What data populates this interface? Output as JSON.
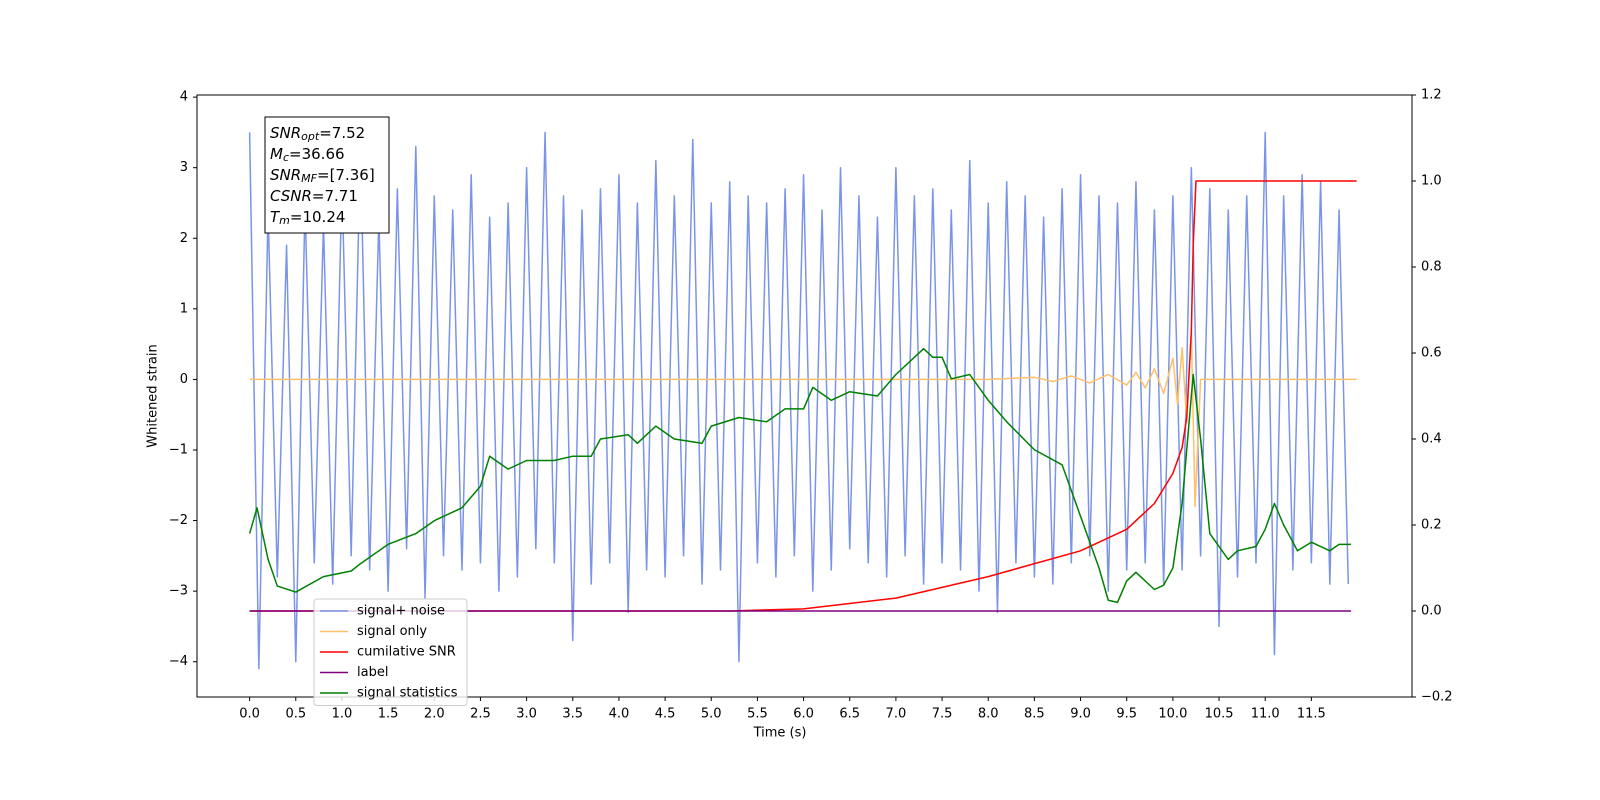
{
  "chart_data": {
    "type": "line",
    "xlabel": "Time (s)",
    "ylabel": "Whitened strain",
    "xlim": [
      -0.57,
      12.59
    ],
    "ylim": [
      -4.5,
      4.03
    ],
    "y2lim": [
      -0.2,
      1.2
    ],
    "grid": false,
    "legend": "lower left",
    "xticks": [
      {
        "value": 0,
        "label": "0.0"
      },
      0.5,
      {
        "value": 1,
        "label": "1.0"
      },
      1.5,
      {
        "value": 2,
        "label": "2.0"
      },
      2.5,
      {
        "value": 3,
        "label": "3.0"
      },
      3.5,
      {
        "value": 4,
        "label": "4.0"
      },
      4.5,
      {
        "value": 5,
        "label": "5.0"
      },
      5.5,
      {
        "value": 6,
        "label": "6.0"
      },
      6.5,
      {
        "value": 7,
        "label": "7.0"
      },
      7.5,
      {
        "value": 8,
        "label": "8.0"
      },
      8.5,
      {
        "value": 9,
        "label": "9.0"
      },
      9.5,
      {
        "value": 10,
        "label": "10.0"
      },
      10.5,
      {
        "value": 11,
        "label": "11.0"
      },
      11.5
    ],
    "yticks": [
      {
        "value": -4,
        "label": "−4"
      },
      {
        "value": -3,
        "label": "−3"
      },
      {
        "value": -2,
        "label": "−2"
      },
      {
        "value": -1,
        "label": "−1"
      },
      0,
      1,
      2,
      3,
      4
    ],
    "y2ticks": [
      {
        "value": -0.2,
        "label": "−0.2"
      },
      {
        "value": 0,
        "label": "0.0"
      },
      0.2,
      0.4,
      0.6,
      0.8,
      {
        "value": 1,
        "label": "1.0"
      },
      1.2
    ],
    "annotation": [
      {
        "var": "SNR",
        "sub": "opt",
        "text": "=7.52"
      },
      {
        "var": "M",
        "sub": "c",
        "text": "=36.66"
      },
      {
        "var": "SNR",
        "sub": "MF",
        "text": "=[7.36]"
      },
      {
        "var": "CSNR",
        "sub": null,
        "text": "=7.71"
      },
      {
        "var": "T",
        "sub": "m",
        "text": "=10.24"
      }
    ],
    "series": [
      {
        "name": "signal+ noise",
        "color": "#7b95e6",
        "axis": "y",
        "x": [
          0.0,
          0.1,
          0.2,
          0.3,
          0.4,
          0.5,
          0.6,
          0.7,
          0.8,
          0.9,
          1.0,
          1.1,
          1.2,
          1.3,
          1.4,
          1.5,
          1.6,
          1.7,
          1.8,
          1.9,
          2.0,
          2.1,
          2.2,
          2.3,
          2.4,
          2.5,
          2.6,
          2.7,
          2.8,
          2.9,
          3.0,
          3.1,
          3.2,
          3.3,
          3.4,
          3.5,
          3.6,
          3.7,
          3.8,
          3.9,
          4.0,
          4.1,
          4.2,
          4.3,
          4.4,
          4.5,
          4.6,
          4.7,
          4.8,
          4.9,
          5.0,
          5.1,
          5.2,
          5.3,
          5.4,
          5.5,
          5.6,
          5.7,
          5.8,
          5.9,
          6.0,
          6.1,
          6.2,
          6.3,
          6.4,
          6.5,
          6.6,
          6.7,
          6.8,
          6.9,
          7.0,
          7.1,
          7.2,
          7.3,
          7.4,
          7.5,
          7.6,
          7.7,
          7.8,
          7.9,
          8.0,
          8.1,
          8.2,
          8.3,
          8.4,
          8.5,
          8.6,
          8.7,
          8.8,
          8.9,
          9.0,
          9.1,
          9.2,
          9.3,
          9.4,
          9.5,
          9.6,
          9.7,
          9.8,
          9.9,
          10.0,
          10.1,
          10.2,
          10.3,
          10.4,
          10.5,
          10.6,
          10.7,
          10.8,
          10.9,
          11.0,
          11.1,
          11.2,
          11.3,
          11.4,
          11.5,
          11.6,
          11.7,
          11.8,
          11.9
        ],
        "values": [
          3.5,
          -4.1,
          2.4,
          -2.8,
          1.9,
          -4.0,
          2.5,
          -2.6,
          2.2,
          -2.9,
          2.8,
          -2.5,
          3.3,
          -2.7,
          2.3,
          -3.0,
          2.7,
          -2.4,
          3.3,
          -3.1,
          2.6,
          -2.5,
          2.4,
          -2.7,
          2.9,
          -2.6,
          2.3,
          -3.0,
          2.5,
          -2.8,
          3.0,
          -2.4,
          3.5,
          -2.6,
          2.6,
          -3.7,
          2.4,
          -2.9,
          2.7,
          -2.6,
          2.9,
          -3.3,
          2.5,
          -2.7,
          3.1,
          -2.8,
          2.6,
          -2.5,
          3.4,
          -2.9,
          2.5,
          -2.7,
          2.8,
          -4.0,
          2.6,
          -2.6,
          2.5,
          -2.8,
          2.7,
          -2.5,
          2.9,
          -3.0,
          2.4,
          -2.7,
          3.0,
          -2.4,
          2.6,
          -2.6,
          2.3,
          -2.8,
          3.0,
          -2.5,
          2.6,
          -2.9,
          2.7,
          -2.6,
          2.4,
          -2.7,
          3.1,
          -3.0,
          2.5,
          -3.3,
          2.8,
          -2.6,
          2.6,
          -2.8,
          2.3,
          -2.9,
          2.7,
          -2.6,
          2.9,
          -2.5,
          2.6,
          -3.0,
          2.5,
          -2.7,
          2.8,
          -2.6,
          2.4,
          -2.9,
          2.6,
          -2.7,
          3.0,
          -2.5,
          2.7,
          -3.5,
          2.4,
          -2.8,
          2.6,
          -2.6,
          3.5,
          -3.9,
          2.6,
          -2.7,
          2.9,
          -2.6,
          2.8,
          -2.9,
          2.4,
          -2.9
        ]
      },
      {
        "name": "signal only",
        "color": "#ffc06a",
        "axis": "y",
        "x": [
          0,
          8.0,
          8.5,
          8.7,
          8.9,
          9.1,
          9.3,
          9.5,
          9.6,
          9.7,
          9.8,
          9.9,
          10.0,
          10.05,
          10.1,
          10.15,
          10.2,
          10.24,
          10.3,
          11.99
        ],
        "values": [
          0,
          0,
          0.03,
          -0.03,
          0.05,
          -0.05,
          0.07,
          -0.08,
          0.1,
          -0.12,
          0.15,
          -0.2,
          0.3,
          -0.35,
          0.45,
          -0.6,
          0.7,
          -1.8,
          0,
          0
        ]
      },
      {
        "name": "cumilative SNR",
        "color": "#ff0000",
        "axis": "y2",
        "x": [
          0,
          5.2,
          6.0,
          7.0,
          8.0,
          9.0,
          9.5,
          9.8,
          10.0,
          10.1,
          10.15,
          10.2,
          10.22,
          10.25,
          11.99
        ],
        "values": [
          0,
          0,
          0.005,
          0.03,
          0.08,
          0.14,
          0.19,
          0.25,
          0.32,
          0.38,
          0.45,
          0.65,
          0.85,
          1.0,
          1.0
        ]
      },
      {
        "name": "label",
        "color": "#800080",
        "axis": "y2",
        "x": [
          0,
          11.93
        ],
        "values": [
          0,
          0
        ]
      },
      {
        "name": "signal statistics",
        "color": "#008000",
        "axis": "y2",
        "x": [
          0,
          0.08,
          0.2,
          0.3,
          0.5,
          0.8,
          1.1,
          1.2,
          1.5,
          1.8,
          2.0,
          2.3,
          2.5,
          2.6,
          2.8,
          3.0,
          3.3,
          3.5,
          3.7,
          3.8,
          4.1,
          4.2,
          4.4,
          4.6,
          4.9,
          5.0,
          5.3,
          5.6,
          5.8,
          6.0,
          6.1,
          6.3,
          6.5,
          6.8,
          7.0,
          7.2,
          7.3,
          7.4,
          7.5,
          7.6,
          7.8,
          8.0,
          8.2,
          8.5,
          8.8,
          9.0,
          9.2,
          9.3,
          9.4,
          9.5,
          9.6,
          9.8,
          9.9,
          10.0,
          10.1,
          10.22,
          10.3,
          10.4,
          10.6,
          10.7,
          10.9,
          11.0,
          11.1,
          11.2,
          11.35,
          11.5,
          11.7,
          11.8,
          11.93
        ],
        "values": [
          0.18,
          0.24,
          0.12,
          0.058,
          0.044,
          0.08,
          0.093,
          0.11,
          0.155,
          0.18,
          0.21,
          0.24,
          0.29,
          0.36,
          0.33,
          0.35,
          0.35,
          0.36,
          0.36,
          0.4,
          0.41,
          0.39,
          0.43,
          0.4,
          0.39,
          0.43,
          0.45,
          0.44,
          0.47,
          0.47,
          0.52,
          0.49,
          0.51,
          0.5,
          0.55,
          0.59,
          0.61,
          0.59,
          0.59,
          0.54,
          0.55,
          0.49,
          0.44,
          0.375,
          0.34,
          0.22,
          0.1,
          0.025,
          0.02,
          0.07,
          0.09,
          0.05,
          0.06,
          0.1,
          0.25,
          0.55,
          0.4,
          0.18,
          0.12,
          0.14,
          0.15,
          0.19,
          0.25,
          0.2,
          0.14,
          0.16,
          0.14,
          0.155,
          0.155
        ]
      }
    ]
  }
}
